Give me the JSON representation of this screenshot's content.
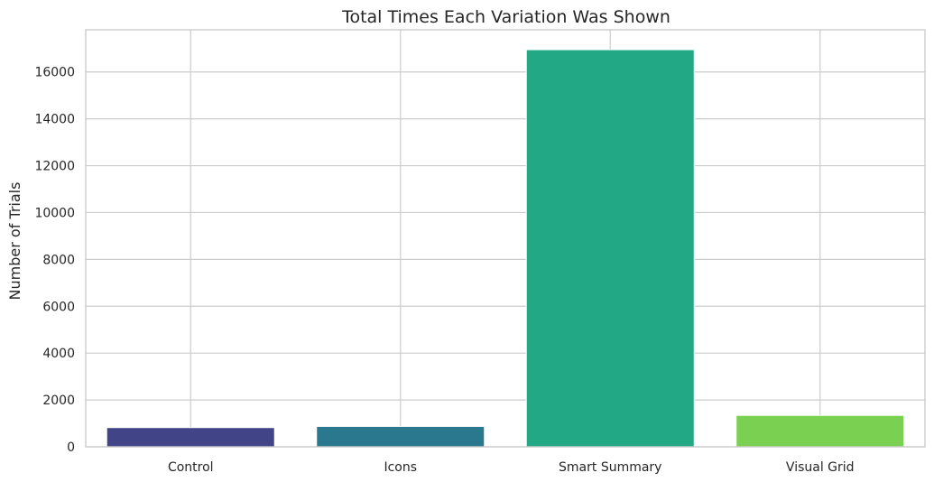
{
  "chart_data": {
    "type": "bar",
    "title": "Total Times Each Variation Was Shown",
    "xlabel": "",
    "ylabel": "Number of Trials",
    "categories": [
      "Control",
      "Icons",
      "Smart Summary",
      "Visual Grid"
    ],
    "values": [
      820,
      870,
      16950,
      1340
    ],
    "colors": [
      "#414487",
      "#2a788e",
      "#22a884",
      "#7ad151"
    ],
    "ylim": [
      0,
      17800
    ],
    "yticks": [
      0,
      2000,
      4000,
      6000,
      8000,
      10000,
      12000,
      14000,
      16000
    ],
    "grid": true,
    "legend": "none"
  }
}
